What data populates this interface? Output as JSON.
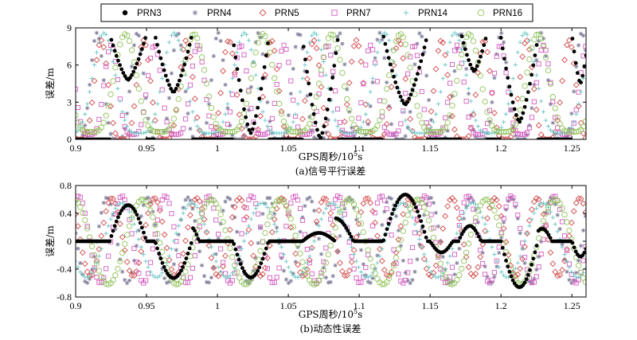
{
  "legend": [
    {
      "name": "PRN3",
      "color": "#000000",
      "marker": "filled-circle"
    },
    {
      "name": "PRN4",
      "color": "#7f7f9c",
      "marker": "asterisk"
    },
    {
      "name": "PRN5",
      "color": "#d24a4a",
      "marker": "open-diamond"
    },
    {
      "name": "PRN7",
      "color": "#d45cc0",
      "marker": "open-square"
    },
    {
      "name": "PRN14",
      "color": "#6cc6c6",
      "marker": "plus"
    },
    {
      "name": "PRN16",
      "color": "#8fc25a",
      "marker": "open-circle"
    }
  ],
  "chart_data": [
    {
      "type": "scatter",
      "title": "",
      "caption": "(a)信号平行误差",
      "xlabel": "GPS周秒/10",
      "xlabel_sup": "5",
      "xlabel_unit": "s",
      "ylabel": "误差/m",
      "xlim": [
        0.9,
        1.26
      ],
      "ylim": [
        0,
        9
      ],
      "xticks": [
        0.9,
        0.95,
        1,
        1.05,
        1.1,
        1.15,
        1.2,
        1.25
      ],
      "xtick_labels": [
        "0.9",
        "0.95",
        "1",
        "1.05",
        "1.1",
        "1.15",
        "1.2",
        "1.25"
      ],
      "yticks": [
        0,
        3,
        6,
        9
      ],
      "ytick_labels": [
        "0",
        "3",
        "6",
        "9"
      ],
      "series": [
        {
          "name": "PRN3",
          "segments": [
            {
              "start": 0.924,
              "end": 0.95,
              "min": 4.8,
              "max": 8.5
            },
            {
              "start": 0.956,
              "end": 0.982,
              "min": 3.8,
              "max": 8.4
            },
            {
              "start": 1.011,
              "end": 1.036,
              "min": 0.5,
              "max": 8.1
            },
            {
              "start": 1.06,
              "end": 1.085,
              "min": 0.1,
              "max": 8.2
            },
            {
              "start": 1.117,
              "end": 1.148,
              "min": 2.8,
              "max": 8.4
            },
            {
              "start": 1.172,
              "end": 1.19,
              "min": 5.5,
              "max": 8.5
            },
            {
              "start": 1.2,
              "end": 1.226,
              "min": 1.4,
              "max": 8.2
            },
            {
              "start": 1.25,
              "end": 1.262,
              "min": 4.5,
              "max": 8.5
            }
          ]
        },
        {
          "name": "PRN4",
          "period": 0.0285,
          "phase": 0.915,
          "min": 0.0,
          "max": 8.6,
          "offset": 0.0
        },
        {
          "name": "PRN5",
          "period": 0.03,
          "phase": 0.918,
          "min": 0.0,
          "max": 8.0,
          "offset": 0.0
        },
        {
          "name": "PRN7",
          "period": 0.0305,
          "phase": 0.925,
          "min": 0.4,
          "max": 7.6,
          "offset": 0.0
        },
        {
          "name": "PRN14",
          "period": 0.0495,
          "phase": 0.92,
          "min": 0.5,
          "max": 8.6,
          "offset": 0.0
        },
        {
          "name": "PRN16",
          "period": 0.0485,
          "phase": 0.935,
          "min": 0.6,
          "max": 8.5,
          "offset": 0.0
        }
      ]
    },
    {
      "type": "scatter",
      "title": "",
      "caption": "(b)动态性误差",
      "xlabel": "GPS周秒/10",
      "xlabel_sup": "5",
      "xlabel_unit": "s",
      "ylabel": "误差/m",
      "xlim": [
        0.9,
        1.26
      ],
      "ylim": [
        -0.8,
        0.8
      ],
      "xticks": [
        0.9,
        0.95,
        1,
        1.05,
        1.1,
        1.15,
        1.2,
        1.25
      ],
      "xtick_labels": [
        "0.9",
        "0.95",
        "1",
        "1.05",
        "1.1",
        "1.15",
        "1.2",
        "1.25"
      ],
      "yticks": [
        -0.8,
        -0.4,
        0,
        0.4,
        0.8
      ],
      "ytick_labels": [
        "-0.8",
        "-0.4",
        "0",
        "0.4",
        "0.8"
      ],
      "series": [
        {
          "name": "PRN3",
          "segments": [
            {
              "start": 0.924,
              "end": 0.95,
              "amp": 0.52
            },
            {
              "start": 0.956,
              "end": 0.982,
              "amp": -0.53
            },
            {
              "start": 0.976,
              "end": 0.987,
              "amp": 0.2
            },
            {
              "start": 1.011,
              "end": 1.036,
              "amp": -0.52
            },
            {
              "start": 1.06,
              "end": 1.083,
              "amp": 0.12
            },
            {
              "start": 1.07,
              "end": 1.096,
              "amp": 0.33
            },
            {
              "start": 1.117,
              "end": 1.148,
              "amp": 0.67
            },
            {
              "start": 1.15,
              "end": 1.166,
              "amp": -0.16
            },
            {
              "start": 1.17,
              "end": 1.186,
              "amp": 0.22
            },
            {
              "start": 1.2,
              "end": 1.226,
              "amp": -0.66
            },
            {
              "start": 1.222,
              "end": 1.236,
              "amp": 0.18
            },
            {
              "start": 1.25,
              "end": 1.262,
              "amp": -0.22
            }
          ]
        },
        {
          "name": "PRN4",
          "period": 0.0285,
          "phase": 0.915,
          "min": -0.6,
          "max": 0.63,
          "offset": 0.0
        },
        {
          "name": "PRN5",
          "period": 0.03,
          "phase": 0.918,
          "min": -0.5,
          "max": 0.62,
          "offset": 0.0
        },
        {
          "name": "PRN7",
          "period": 0.0305,
          "phase": 0.925,
          "min": -0.6,
          "max": 0.65,
          "offset": 0.0
        },
        {
          "name": "PRN14",
          "period": 0.0495,
          "phase": 0.92,
          "min": -0.52,
          "max": 0.55,
          "offset": 0.0
        },
        {
          "name": "PRN16",
          "period": 0.0485,
          "phase": 0.935,
          "min": -0.62,
          "max": 0.6,
          "offset": 0.0
        }
      ]
    }
  ]
}
